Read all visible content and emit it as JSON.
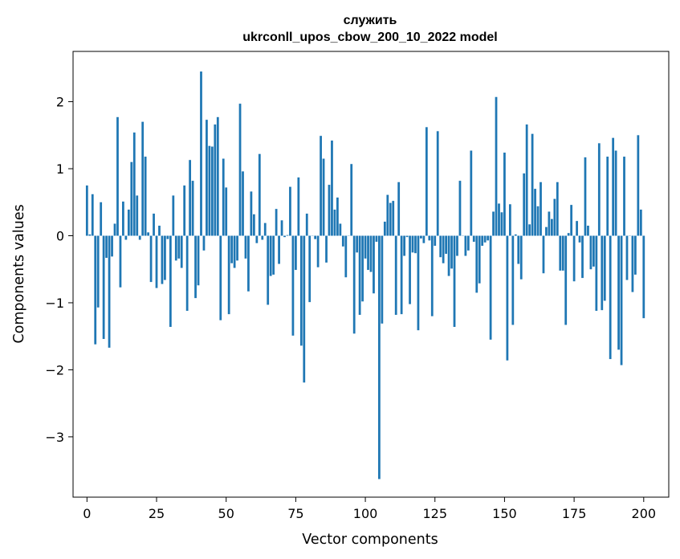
{
  "chart_data": {
    "type": "bar",
    "title": "служить",
    "subtitle": "ukrconll_upos_cbow_200_10_2022 model",
    "xlabel": "Vector components",
    "ylabel": "Components values",
    "xlim": [
      -5,
      209
    ],
    "ylim": [
      -3.9,
      2.75
    ],
    "xticks": [
      0,
      25,
      50,
      75,
      100,
      125,
      150,
      175,
      200
    ],
    "yticks": [
      -3,
      -2,
      -1,
      0,
      1,
      2
    ],
    "ytick_labels": [
      "−3",
      "−2",
      "−1",
      "0",
      "1",
      "2"
    ],
    "bar_color": "#1f77b4",
    "grid": false,
    "values": [
      0.75,
      0.02,
      0.62,
      -1.62,
      -1.07,
      0.5,
      -1.54,
      -0.33,
      -1.67,
      -0.31,
      0.18,
      1.77,
      -0.77,
      0.51,
      -0.06,
      0.39,
      1.1,
      1.54,
      0.6,
      -0.06,
      1.7,
      1.18,
      0.05,
      -0.69,
      0.33,
      -0.78,
      0.15,
      -0.72,
      -0.66,
      -0.05,
      -1.36,
      0.6,
      -0.37,
      -0.34,
      -0.48,
      0.75,
      -1.12,
      1.13,
      0.82,
      -0.93,
      -0.74,
      2.45,
      -0.22,
      1.73,
      1.34,
      1.33,
      1.66,
      1.77,
      -1.26,
      1.15,
      0.72,
      -1.17,
      -0.41,
      -0.48,
      -0.37,
      1.97,
      0.96,
      -0.34,
      -0.83,
      0.66,
      0.32,
      -0.11,
      1.22,
      -0.06,
      0.19,
      -1.03,
      -0.6,
      -0.58,
      0.4,
      -0.42,
      0.23,
      -0.02,
      0.01,
      0.73,
      -1.49,
      -0.51,
      0.87,
      -1.64,
      -2.19,
      0.33,
      -0.99,
      0.0,
      -0.05,
      -0.47,
      1.49,
      1.15,
      -0.4,
      0.76,
      1.42,
      0.39,
      0.57,
      0.18,
      -0.16,
      -0.62,
      0.0,
      1.07,
      -1.46,
      -0.25,
      -1.18,
      -0.98,
      -0.34,
      -0.51,
      -0.54,
      -0.86,
      -0.09,
      -3.63,
      -1.31,
      0.21,
      0.61,
      0.49,
      0.52,
      -1.18,
      0.8,
      -1.17,
      -0.3,
      -0.02,
      -1.02,
      -0.25,
      -0.26,
      -1.41,
      -0.04,
      -0.11,
      1.62,
      -0.07,
      -1.2,
      -0.15,
      1.56,
      -0.32,
      -0.41,
      -0.27,
      -0.6,
      -0.49,
      -1.36,
      -0.3,
      0.82,
      0.0,
      -0.3,
      -0.22,
      1.27,
      -0.09,
      -0.85,
      -0.71,
      -0.15,
      -0.1,
      -0.07,
      -1.55,
      0.36,
      2.07,
      0.48,
      0.35,
      1.24,
      -1.86,
      0.47,
      -1.33,
      0.02,
      -0.42,
      -0.65,
      0.93,
      1.66,
      0.17,
      1.52,
      0.7,
      0.44,
      0.8,
      -0.56,
      0.13,
      0.36,
      0.25,
      0.55,
      0.8,
      -0.52,
      -0.52,
      -1.33,
      0.04,
      0.46,
      -0.68,
      0.22,
      -0.1,
      -0.63,
      1.17,
      0.15,
      -0.5,
      -0.46,
      -1.12,
      1.38,
      -1.11,
      -0.97,
      1.18,
      -1.84,
      1.46,
      1.27,
      -1.7,
      -1.93,
      1.18,
      -0.66,
      0.0,
      -0.84,
      -0.58,
      1.5,
      0.39,
      -1.23
    ]
  }
}
